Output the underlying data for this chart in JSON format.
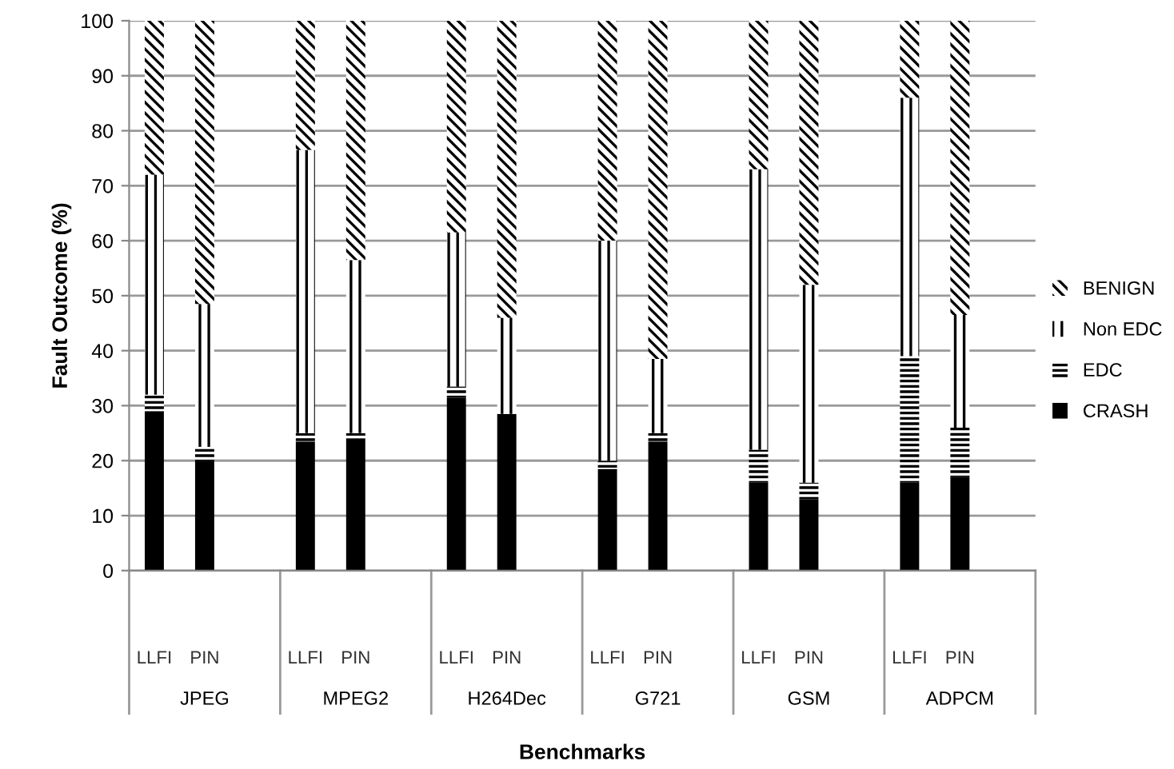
{
  "chart_data": {
    "type": "bar",
    "stacked": true,
    "xlabel": "Benchmarks",
    "ylabel": "Fault Outcome (%)",
    "categories": [
      "LLFI",
      "PIN",
      null,
      "LLFI",
      "PIN",
      null,
      "LLFI",
      "PIN",
      null,
      "LLFI",
      "PIN",
      null,
      "LLFI",
      "PIN",
      null,
      "LLFI",
      "PIN",
      null
    ],
    "series": [
      {
        "name": "CRASH",
        "color": "#000000",
        "values": [
          29,
          20,
          null,
          23.5,
          24,
          null,
          31.5,
          28.5,
          null,
          18.5,
          23.5,
          null,
          16,
          13,
          null,
          16,
          17,
          null
        ]
      },
      {
        "name": "EDC",
        "color": "#000000",
        "values": [
          3,
          2.5,
          null,
          1.5,
          1,
          null,
          2,
          0,
          null,
          1.5,
          1.5,
          null,
          6,
          3,
          null,
          23,
          9,
          null
        ]
      },
      {
        "name": "Non EDC",
        "color": "#000000",
        "values": [
          40,
          26,
          null,
          51.5,
          31.5,
          null,
          28,
          17.5,
          null,
          40,
          13.5,
          null,
          51,
          36,
          null,
          47,
          20.5,
          null
        ]
      },
      {
        "name": "BENIGN",
        "color": "#000000",
        "values": [
          28,
          51.5,
          null,
          23.5,
          43.5,
          null,
          38.5,
          54,
          null,
          40,
          61.5,
          null,
          27,
          48,
          null,
          14,
          53.5,
          null
        ]
      }
    ],
    "annotations": [
      "JPEG",
      "MPEG2",
      "H264Dec",
      "G721",
      "GSM",
      "ADPCM"
    ],
    "ylim": [
      0,
      100
    ],
    "yticks": [
      0,
      10,
      20,
      30,
      40,
      50,
      60,
      70,
      80,
      90,
      100
    ],
    "grid": "y",
    "legend": "right"
  }
}
